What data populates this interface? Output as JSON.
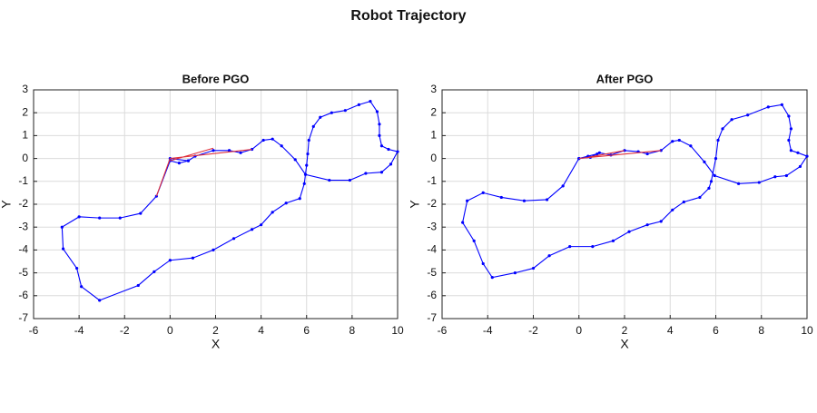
{
  "title": "Robot Trajectory",
  "chart_data": [
    {
      "type": "line",
      "title": "Before PGO",
      "xlabel": "X",
      "ylabel": "Y",
      "xlim": [
        -6,
        10
      ],
      "ylim": [
        -7,
        3
      ],
      "xticks": [
        -6,
        -4,
        -2,
        0,
        2,
        4,
        6,
        8,
        10
      ],
      "yticks": [
        -7,
        -6,
        -5,
        -4,
        -3,
        -2,
        -1,
        0,
        1,
        2,
        3
      ],
      "grid": true,
      "series": [
        {
          "color": "#0000ff",
          "marker": true,
          "x": [
            0,
            0.8,
            1.1,
            1.9,
            2.6,
            3.1,
            3.6,
            4.1,
            4.5,
            4.9,
            5.5,
            5.95,
            7.0,
            7.9,
            8.6,
            9.3,
            9.7,
            10.0,
            9.6,
            9.3,
            9.2,
            9.2,
            9.1,
            8.8,
            8.3,
            7.7,
            7.1,
            6.6,
            6.3,
            6.1,
            6.05,
            6.0,
            5.9,
            5.7,
            5.1,
            4.5,
            4.0,
            3.6,
            2.8,
            1.9,
            1.0,
            0.0,
            -0.7,
            -1.4,
            -3.1,
            -3.9,
            -4.1,
            -4.7,
            -4.75,
            -4.0,
            -3.1,
            -2.2,
            -1.3,
            -0.6,
            0.0,
            0.4,
            0.8
          ],
          "values": [
            0,
            -0.1,
            0.1,
            0.35,
            0.35,
            0.25,
            0.4,
            0.8,
            0.85,
            0.55,
            -0.05,
            -0.7,
            -0.95,
            -0.95,
            -0.65,
            -0.6,
            -0.25,
            0.3,
            0.4,
            0.55,
            1.0,
            1.5,
            2.05,
            2.5,
            2.35,
            2.1,
            2.0,
            1.8,
            1.4,
            0.8,
            0.2,
            -0.3,
            -1.1,
            -1.75,
            -1.95,
            -2.35,
            -2.9,
            -3.1,
            -3.5,
            -4.0,
            -4.35,
            -4.45,
            -4.95,
            -5.55,
            -6.2,
            -5.6,
            -4.8,
            -3.95,
            -3.0,
            -2.55,
            -2.6,
            -2.6,
            -2.4,
            -1.65,
            -0.1,
            -0.2,
            -0.1
          ]
        },
        {
          "color": "#e0303a",
          "marker": false,
          "x": [
            0,
            3.6,
            null,
            0,
            1.9,
            null,
            -0.6,
            0
          ],
          "values": [
            0,
            0.4,
            null,
            -0.1,
            0.45,
            null,
            -1.65,
            0
          ]
        }
      ]
    },
    {
      "type": "line",
      "title": "After PGO",
      "xlabel": "X",
      "ylabel": "Y",
      "xlim": [
        -6,
        10
      ],
      "ylim": [
        -7,
        3
      ],
      "xticks": [
        -6,
        -4,
        -2,
        0,
        2,
        4,
        6,
        8,
        10
      ],
      "yticks": [
        -7,
        -6,
        -5,
        -4,
        -3,
        -2,
        -1,
        0,
        1,
        2,
        3
      ],
      "grid": true,
      "series": [
        {
          "color": "#0000ff",
          "marker": true,
          "x": [
            0,
            0.5,
            0.9,
            1.4,
            2.0,
            2.6,
            3.0,
            3.6,
            4.1,
            4.4,
            4.9,
            5.5,
            5.95,
            7.0,
            7.9,
            8.6,
            9.1,
            9.7,
            10.0,
            9.6,
            9.3,
            9.2,
            9.3,
            9.2,
            8.9,
            8.3,
            7.4,
            6.7,
            6.3,
            6.1,
            6.0,
            5.8,
            5.7,
            5.3,
            4.6,
            4.1,
            3.6,
            3.0,
            2.2,
            1.5,
            0.6,
            -0.4,
            -1.3,
            -2.0,
            -2.8,
            -3.8,
            -4.2,
            -4.6,
            -5.1,
            -4.9,
            -4.2,
            -3.4,
            -2.4,
            -1.4,
            -0.7,
            0.0,
            0.4,
            0.8
          ],
          "values": [
            0,
            0.05,
            0.25,
            0.15,
            0.35,
            0.3,
            0.2,
            0.35,
            0.75,
            0.8,
            0.55,
            -0.15,
            -0.75,
            -1.1,
            -1.05,
            -0.8,
            -0.75,
            -0.35,
            0.1,
            0.25,
            0.35,
            0.8,
            1.3,
            1.85,
            2.35,
            2.25,
            1.9,
            1.7,
            1.3,
            0.8,
            0.0,
            -1.0,
            -1.3,
            -1.7,
            -1.9,
            -2.25,
            -2.75,
            -2.9,
            -3.2,
            -3.6,
            -3.85,
            -3.85,
            -4.25,
            -4.8,
            -5.0,
            -5.2,
            -4.6,
            -3.6,
            -2.8,
            -1.85,
            -1.5,
            -1.7,
            -1.85,
            -1.8,
            -1.2,
            0.0,
            0.1,
            0.2
          ]
        },
        {
          "color": "#e0303a",
          "marker": false,
          "x": [
            0,
            3.6,
            null,
            0.4,
            2.0
          ],
          "values": [
            0,
            0.35,
            null,
            0.05,
            0.35
          ]
        }
      ]
    }
  ]
}
